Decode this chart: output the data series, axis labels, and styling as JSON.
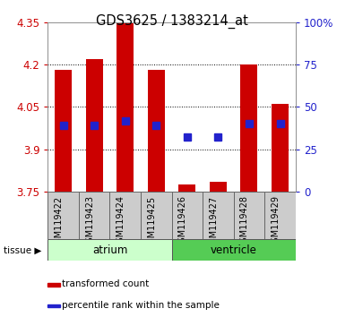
{
  "title": "GDS3625 / 1383214_at",
  "samples": [
    "GSM119422",
    "GSM119423",
    "GSM119424",
    "GSM119425",
    "GSM119426",
    "GSM119427",
    "GSM119428",
    "GSM119429"
  ],
  "bar_bottom": 3.75,
  "bar_tops": [
    4.18,
    4.22,
    4.345,
    4.18,
    3.775,
    3.785,
    4.2,
    4.06
  ],
  "blue_y": [
    3.985,
    3.985,
    4.0,
    3.985,
    3.945,
    3.945,
    3.99,
    3.99
  ],
  "ylim_left": [
    3.75,
    4.35
  ],
  "ylim_right": [
    0,
    100
  ],
  "yticks_left": [
    3.75,
    3.9,
    4.05,
    4.2,
    4.35
  ],
  "yticks_right": [
    0,
    25,
    50,
    75,
    100
  ],
  "ytick_labels_right": [
    "0",
    "25",
    "50",
    "75",
    "100%"
  ],
  "bar_color": "#cc0000",
  "blue_color": "#2222cc",
  "left_axis_color": "#cc0000",
  "right_axis_color": "#2222cc",
  "bar_width": 0.55,
  "blue_marker_size": 6,
  "grid_yticks": [
    3.9,
    4.05,
    4.2
  ],
  "atrium_color": "#ccffcc",
  "ventricle_color": "#55cc55",
  "xlabels_bg": "#cccccc",
  "legend_red_label": "transformed count",
  "legend_blue_label": "percentile rank within the sample"
}
